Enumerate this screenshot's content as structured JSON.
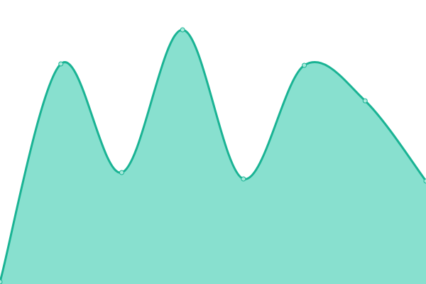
{
  "chart_data": {
    "type": "area",
    "title": "",
    "xlabel": "",
    "ylabel": "",
    "x": [
      0,
      1,
      2,
      3,
      4,
      5,
      6,
      7
    ],
    "series": [
      {
        "values": [
          3,
          310,
          157,
          358,
          148,
          308,
          258,
          145
        ]
      }
    ],
    "ylim": [
      0,
      400
    ],
    "grid": false,
    "legend": "none",
    "curve": "smooth",
    "colors": {
      "line": "#1ab394",
      "fill": "#88e0cf",
      "point_fill": "#a8eadb"
    }
  }
}
